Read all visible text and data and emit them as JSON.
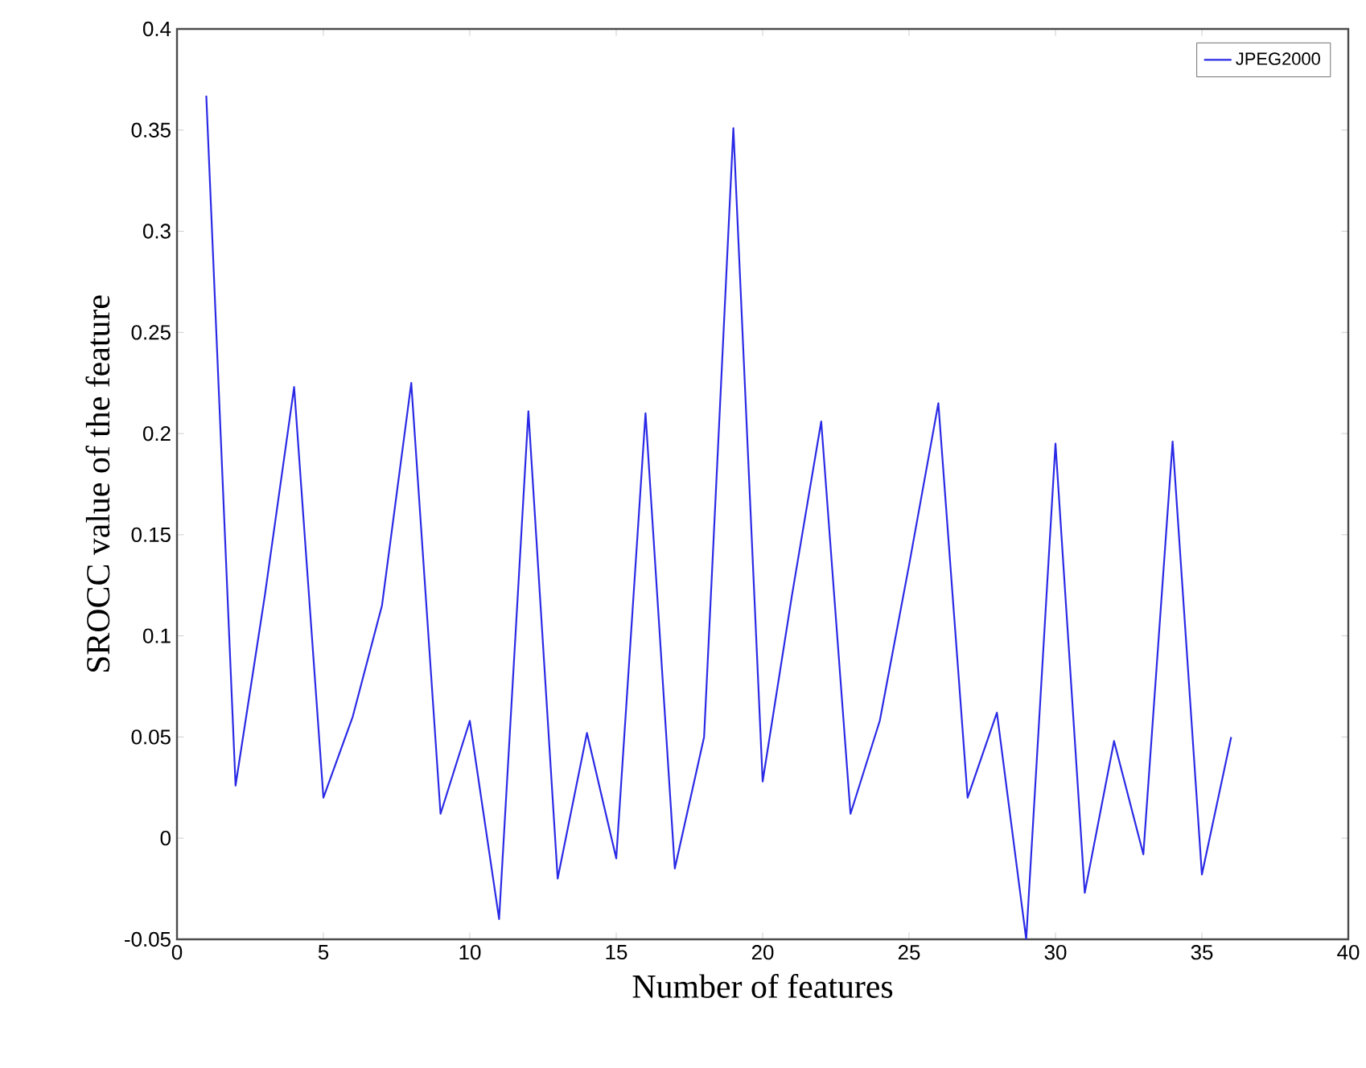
{
  "chart_data": {
    "type": "line",
    "xlabel": "Number of features",
    "ylabel": "SROCC value of the feature",
    "x": [
      1,
      2,
      3,
      4,
      5,
      6,
      7,
      8,
      9,
      10,
      11,
      12,
      13,
      14,
      15,
      16,
      17,
      18,
      19,
      20,
      21,
      22,
      23,
      24,
      25,
      26,
      27,
      28,
      29,
      30,
      31,
      32,
      33,
      34,
      35,
      36
    ],
    "series": [
      {
        "name": "JPEG2000",
        "color": "#2a2ae6",
        "values": [
          0.367,
          0.026,
          0.12,
          0.223,
          0.02,
          0.06,
          0.115,
          0.225,
          0.012,
          0.058,
          -0.04,
          0.211,
          -0.02,
          0.052,
          -0.01,
          0.21,
          -0.015,
          0.05,
          0.351,
          0.028,
          0.12,
          0.206,
          0.012,
          0.058,
          0.135,
          0.215,
          0.02,
          0.062,
          -0.05,
          0.195,
          -0.027,
          0.048,
          -0.008,
          0.196,
          -0.018,
          0.05
        ]
      }
    ],
    "xlim": [
      0,
      40
    ],
    "ylim": [
      -0.05,
      0.4
    ],
    "xticks": [
      0,
      5,
      10,
      15,
      20,
      25,
      30,
      35,
      40
    ],
    "yticks": [
      -0.05,
      0,
      0.05,
      0.1,
      0.15,
      0.2,
      0.25,
      0.3,
      0.35,
      0.4
    ],
    "legend": "top right",
    "grid": false,
    "marker": "none",
    "line_style": "solid"
  }
}
